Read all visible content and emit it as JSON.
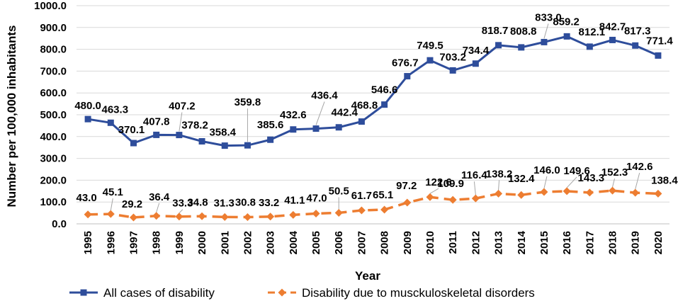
{
  "chart_data": {
    "type": "line",
    "xlabel": "Year",
    "ylabel": "Number per 100,000 inhabitants",
    "ylim": [
      0,
      1000
    ],
    "y_ticks": [
      "0.0",
      "100.0",
      "200.0",
      "300.0",
      "400.0",
      "500.0",
      "600.0",
      "700.0",
      "800.0",
      "900.0",
      "1000.0"
    ],
    "grid": "horizontal",
    "legend_position": "bottom",
    "categories": [
      "1995",
      "1996",
      "1997",
      "1998",
      "1999",
      "2000",
      "2001",
      "2002",
      "2003",
      "2004",
      "2005",
      "2006",
      "2007",
      "2008",
      "2009",
      "2010",
      "2011",
      "2012",
      "2013",
      "2014",
      "2015",
      "2016",
      "2017",
      "2018",
      "2019",
      "2020"
    ],
    "series": [
      {
        "name": "All cases of disability",
        "color": "#2E4D9B",
        "style": "solid",
        "marker": "square",
        "values": [
          480.0,
          463.3,
          370.1,
          407.8,
          407.2,
          378.2,
          358.4,
          359.8,
          385.6,
          432.6,
          436.4,
          442.4,
          468.8,
          546.6,
          676.7,
          749.5,
          703.2,
          734.4,
          818.7,
          808.8,
          833.0,
          859.2,
          812.1,
          842.7,
          817.3,
          771.4
        ],
        "labels": [
          "480.0",
          "463.3",
          "370.1",
          "407.8",
          "407.2",
          "378.2",
          "358.4",
          "359.8",
          "385.6",
          "432.6",
          "436.4",
          "442.4",
          "468.8",
          "546.6",
          "676.7",
          "749.5",
          "703.2",
          "734.4",
          "818.7",
          "808.8",
          "833.0",
          "859.2",
          "812.1",
          "842.7",
          "817.3",
          "771.4"
        ]
      },
      {
        "name": "Disability due to musckuloskeletal disorders",
        "color": "#ED7D31",
        "style": "dashed",
        "marker": "diamond",
        "values": [
          43.0,
          45.1,
          29.2,
          36.4,
          33.3,
          34.8,
          31.3,
          30.8,
          33.2,
          41.1,
          47.0,
          50.5,
          61.7,
          65.1,
          97.2,
          122.6,
          109.9,
          116.4,
          138.2,
          132.4,
          146.0,
          149.6,
          143.3,
          152.3,
          142.6,
          138.4
        ],
        "labels": [
          "43.0",
          "45.1",
          "29.2",
          "36.4",
          "33.3",
          "34.8",
          "31.3",
          "30.8",
          "33.2",
          "41.1",
          "47.0",
          "50.5",
          "61.7",
          "65.1",
          "97.2",
          "122.6",
          "109.9",
          "116.4",
          "138.2",
          "132.4",
          "146.0",
          "149.6",
          "143.3",
          "152.3",
          "142.6",
          "138.4"
        ]
      }
    ]
  }
}
